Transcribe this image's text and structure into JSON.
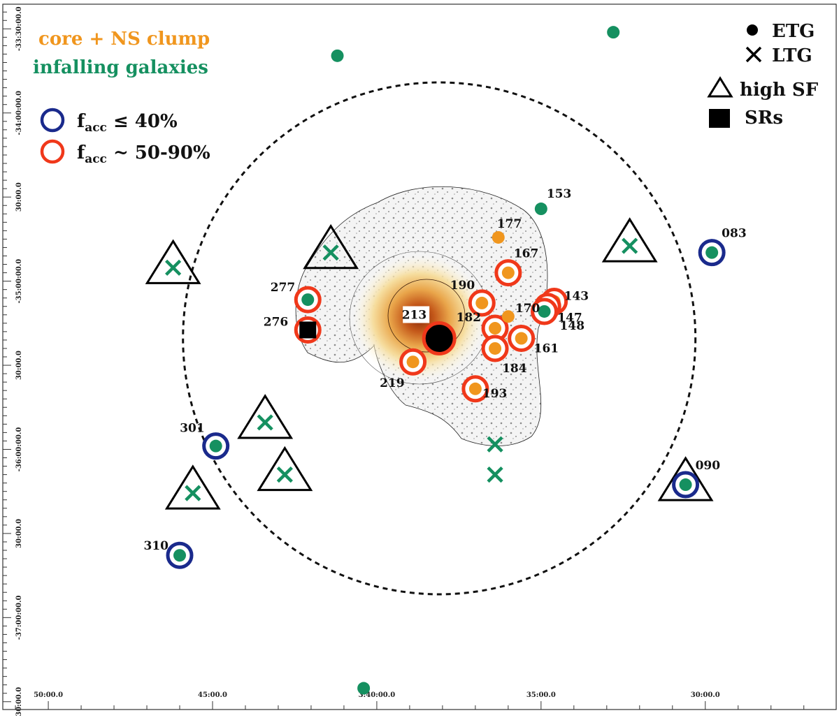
{
  "colors": {
    "core": "#f0961e",
    "infall": "#159060",
    "low_facc": "#1a2a8c",
    "high_facc": "#f0381a",
    "black": "#000000"
  },
  "legend": {
    "group_core": "core + NS clump",
    "group_infall": "infalling galaxies",
    "low_f": "f",
    "low_sub": "acc",
    "low_rest": " ≤ 40%",
    "high_f": "f",
    "high_sub": "acc",
    "high_rest": " ~ 50-90%",
    "etg": "ETG",
    "ltg": "LTG",
    "high_sf": "high SF",
    "srs": "SRs"
  },
  "chart_data": {
    "type": "scatter",
    "title": "",
    "xlabel": "",
    "ylabel": "",
    "x_ticks": [
      "50:00.0",
      "45:00.0",
      "3:40:00.0",
      "35:00.0",
      "30:00.0"
    ],
    "y_ticks": [
      "-33:30:00.0",
      "-34:00:00.0",
      "30:00.0",
      "-35:00:00.0",
      "30:00.0",
      "-36:00:00.0",
      "30:00.0",
      "-37:00:00.0",
      "30:00.0"
    ],
    "x_tick_values": [
      50,
      45,
      40,
      35,
      30
    ],
    "y_tick_values": [
      -33.5,
      -34.0,
      -34.5,
      -35.0,
      -35.5,
      -36.0,
      -36.5,
      -37.0,
      -37.5
    ],
    "xlim": [
      51.3,
      26.1
    ],
    "ylim": [
      -37.53,
      -33.37
    ],
    "x_unit": "arcmin of RA (3h offset)",
    "y_unit": "degrees of Dec",
    "galaxies": [
      {
        "label": "213",
        "x": 38.1,
        "y": -35.34,
        "type": "ETG",
        "group": "core",
        "facc": "high",
        "sr": false,
        "sf": false,
        "bcg": true
      },
      {
        "label": "219",
        "x": 38.9,
        "y": -35.48,
        "type": "ETG",
        "group": "core",
        "facc": "high"
      },
      {
        "label": "190",
        "x": 36.8,
        "y": -35.13,
        "type": "ETG",
        "group": "core",
        "facc": "high"
      },
      {
        "label": "182",
        "x": 36.4,
        "y": -35.28,
        "type": "ETG",
        "group": "core",
        "facc": "high"
      },
      {
        "label": "184",
        "x": 36.4,
        "y": -35.4,
        "type": "ETG",
        "group": "core",
        "facc": "high"
      },
      {
        "label": "193",
        "x": 37.0,
        "y": -35.64,
        "type": "ETG",
        "group": "core",
        "facc": "high"
      },
      {
        "label": "161",
        "x": 35.6,
        "y": -35.34,
        "type": "ETG",
        "group": "core",
        "facc": "high"
      },
      {
        "label": "170",
        "x": 36.0,
        "y": -35.21,
        "type": "ETG",
        "group": "core",
        "facc": null
      },
      {
        "label": "177",
        "x": 36.3,
        "y": -34.74,
        "type": "ETG",
        "group": "core",
        "facc": null
      },
      {
        "label": "167",
        "x": 36.0,
        "y": -34.95,
        "type": "ETG",
        "group": "core",
        "facc": "high"
      },
      {
        "label": "143",
        "x": 34.6,
        "y": -35.12,
        "type": "ETG",
        "group": "core",
        "facc": "high"
      },
      {
        "label": "147",
        "x": 34.8,
        "y": -35.15,
        "type": "ETG",
        "group": "core",
        "facc": "high"
      },
      {
        "label": "148",
        "x": 34.9,
        "y": -35.18,
        "type": "ETG",
        "group": "infall",
        "facc": "high"
      },
      {
        "label": "277",
        "x": 42.1,
        "y": -35.11,
        "type": "ETG",
        "group": "infall",
        "facc": "high"
      },
      {
        "label": "276",
        "x": 42.1,
        "y": -35.29,
        "type": "ETG",
        "group": "core",
        "facc": "high",
        "sr": true
      },
      {
        "label": "153",
        "x": 35.0,
        "y": -34.57,
        "type": "ETG",
        "group": "infall",
        "facc": null
      },
      {
        "label": "083",
        "x": 29.8,
        "y": -34.83,
        "type": "ETG",
        "group": "infall",
        "facc": "low"
      },
      {
        "label": "090",
        "x": 30.6,
        "y": -36.21,
        "type": "ETG",
        "group": "infall",
        "facc": "low",
        "sf": true
      },
      {
        "label": "301",
        "x": 44.9,
        "y": -35.98,
        "type": "ETG",
        "group": "infall",
        "facc": "low"
      },
      {
        "label": "310",
        "x": 46.0,
        "y": -36.63,
        "type": "ETG",
        "group": "infall",
        "facc": "low"
      },
      {
        "label": "",
        "x": 41.2,
        "y": -33.66,
        "type": "ETG",
        "group": "infall",
        "facc": null
      },
      {
        "label": "",
        "x": 32.8,
        "y": -33.52,
        "type": "ETG",
        "group": "infall",
        "facc": null
      },
      {
        "label": "",
        "x": 40.4,
        "y": -37.42,
        "type": "ETG",
        "group": "infall",
        "facc": null
      },
      {
        "label": "",
        "x": 41.4,
        "y": -34.83,
        "type": "LTG",
        "group": "infall",
        "facc": null,
        "sf": true
      },
      {
        "label": "",
        "x": 46.2,
        "y": -34.92,
        "type": "LTG",
        "group": "infall",
        "facc": null,
        "sf": true
      },
      {
        "label": "",
        "x": 32.3,
        "y": -34.79,
        "type": "LTG",
        "group": "infall",
        "facc": null,
        "sf": true
      },
      {
        "label": "",
        "x": 43.4,
        "y": -35.84,
        "type": "LTG",
        "group": "infall",
        "facc": null,
        "sf": true
      },
      {
        "label": "",
        "x": 42.8,
        "y": -36.15,
        "type": "LTG",
        "group": "infall",
        "facc": null,
        "sf": true
      },
      {
        "label": "",
        "x": 45.6,
        "y": -36.26,
        "type": "LTG",
        "group": "infall",
        "facc": null,
        "sf": true
      },
      {
        "label": "",
        "x": 36.4,
        "y": -35.97,
        "type": "LTG",
        "group": "infall",
        "facc": null
      },
      {
        "label": "",
        "x": 36.4,
        "y": -36.15,
        "type": "LTG",
        "group": "infall",
        "facc": null
      }
    ],
    "circle": {
      "center_x": 38.1,
      "center_y": -35.34,
      "radius_ra_min": 7.8
    },
    "grid": false,
    "legend_position": "top-left and top-right"
  }
}
